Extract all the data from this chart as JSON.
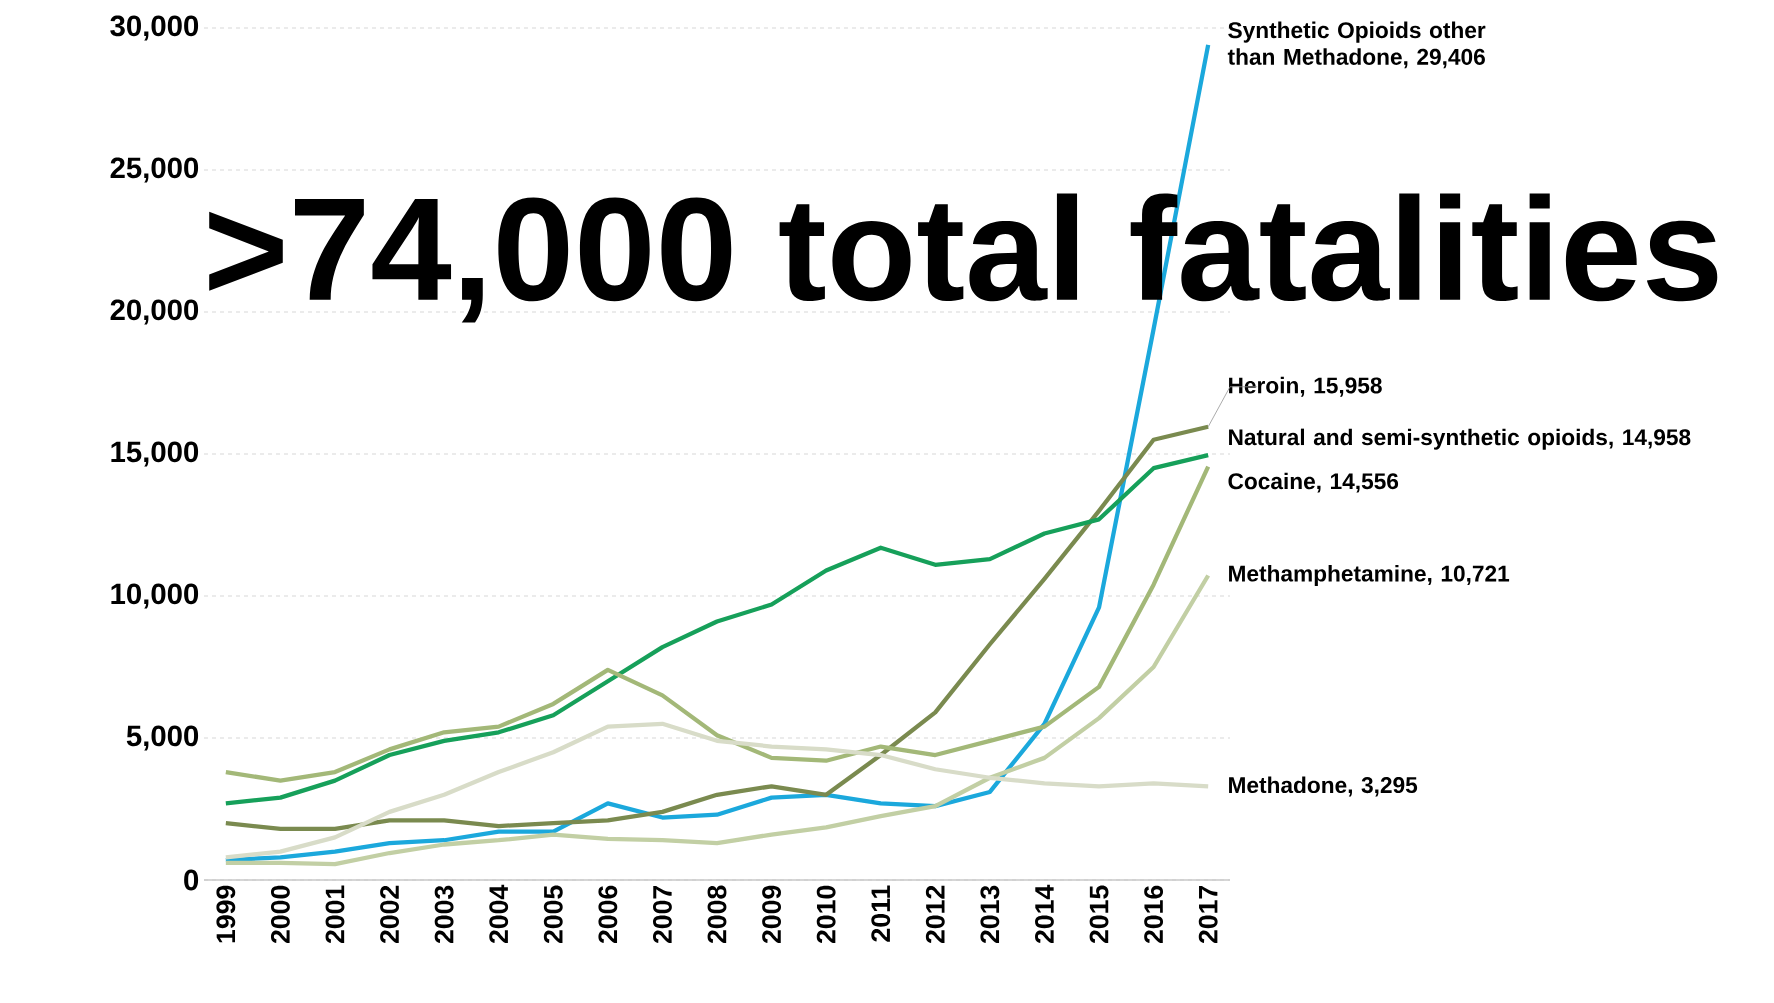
{
  "chart_data": {
    "type": "line",
    "categories": [
      "1999",
      "2000",
      "2001",
      "2002",
      "2003",
      "2004",
      "2005",
      "2006",
      "2007",
      "2008",
      "2009",
      "2010",
      "2011",
      "2012",
      "2013",
      "2014",
      "2015",
      "2016",
      "2017"
    ],
    "series": [
      {
        "name": "Synthetic Opioids other than Methadone, 29,406",
        "color": "#1ba8dc",
        "values": [
          700,
          800,
          1000,
          1300,
          1400,
          1700,
          1700,
          2700,
          2200,
          2300,
          2900,
          3000,
          2700,
          2600,
          3100,
          5500,
          9600,
          19400,
          29406
        ]
      },
      {
        "name": "Heroin, 15,958",
        "color": "#7a8a4f",
        "values": [
          2000,
          1800,
          1800,
          2100,
          2100,
          1900,
          2000,
          2100,
          2400,
          3000,
          3300,
          3000,
          4400,
          5900,
          8300,
          10600,
          13000,
          15500,
          15958
        ]
      },
      {
        "name": "Natural and semi-synthetic opioids, 14,958",
        "color": "#16a05a",
        "values": [
          2700,
          2900,
          3500,
          4400,
          4900,
          5200,
          5800,
          7000,
          8200,
          9100,
          9700,
          10900,
          11700,
          11100,
          11300,
          12200,
          12700,
          14500,
          14958
        ]
      },
      {
        "name": "Cocaine, 14,556",
        "color": "#a3b878",
        "values": [
          3800,
          3500,
          3800,
          4600,
          5200,
          5400,
          6200,
          7400,
          6500,
          5100,
          4300,
          4200,
          4700,
          4400,
          4900,
          5400,
          6800,
          10400,
          14556
        ]
      },
      {
        "name": "Methamphetamine, 10,721",
        "color": "#c2cfa4",
        "values": [
          600,
          600,
          560,
          950,
          1250,
          1400,
          1600,
          1450,
          1400,
          1300,
          1600,
          1850,
          2250,
          2600,
          3600,
          4300,
          5700,
          7500,
          10721
        ]
      },
      {
        "name": "Methadone, 3,295",
        "color": "#d8dcc8",
        "values": [
          800,
          1000,
          1500,
          2400,
          3000,
          3800,
          4500,
          5400,
          5500,
          4900,
          4700,
          4600,
          4400,
          3900,
          3600,
          3400,
          3300,
          3400,
          3295
        ]
      }
    ],
    "ylim": [
      0,
      30000
    ],
    "yticks": [
      0,
      {
        "value": 5000,
        "label": "5,000"
      },
      {
        "value": 10000,
        "label": "10,000"
      },
      {
        "value": 15000,
        "label": "15,000"
      },
      {
        "value": 20000,
        "label": "20,000"
      },
      {
        "value": 25000,
        "label": "25,000"
      },
      {
        "value": 30000,
        "label": "30,000"
      }
    ],
    "grid": "y",
    "marker": "none",
    "line_style": "solid",
    "annotations": [
      ">74,000 total fatalities"
    ]
  }
}
